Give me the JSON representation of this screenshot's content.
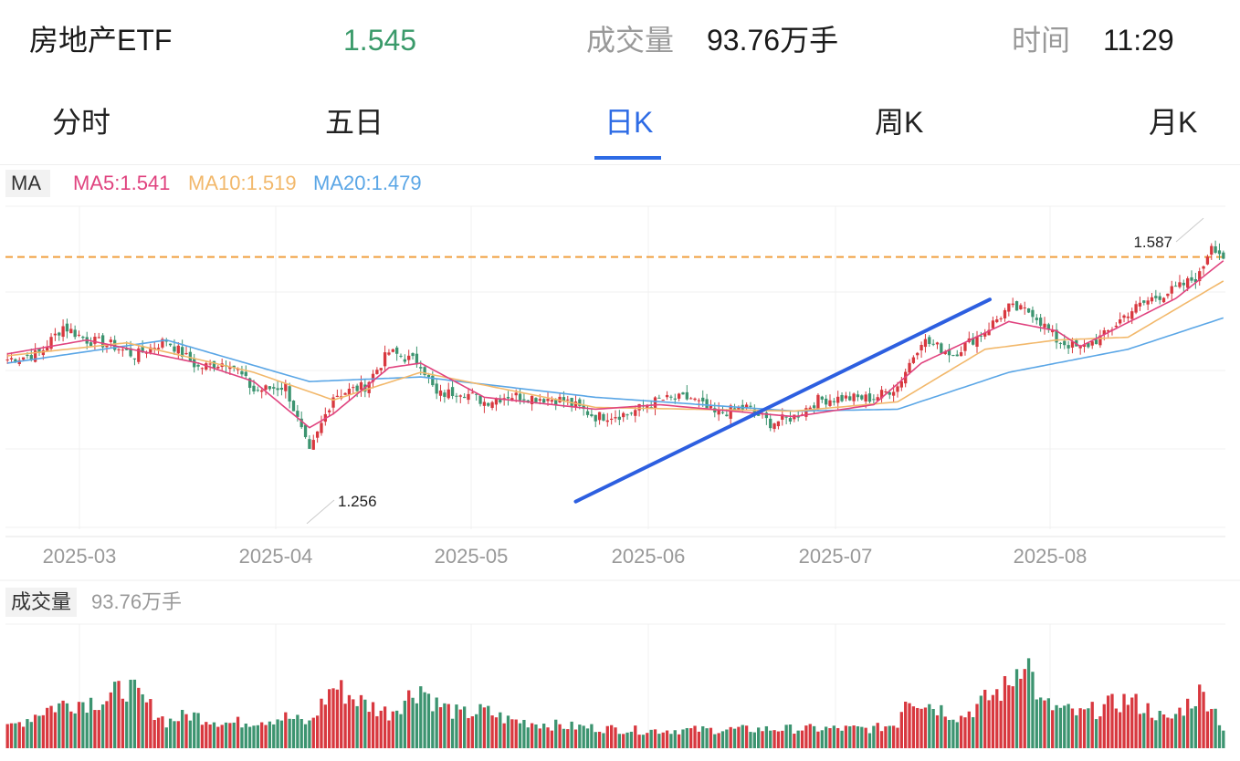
{
  "header": {
    "title": "房地产ETF",
    "price": "1.545",
    "volume_label": "成交量",
    "volume_value": "93.76万手",
    "time_label": "时间",
    "time_value": "11:29"
  },
  "tabs": [
    {
      "label": "分时",
      "active": false
    },
    {
      "label": "五日",
      "active": false
    },
    {
      "label": "日K",
      "active": true
    },
    {
      "label": "周K",
      "active": false
    },
    {
      "label": "月K",
      "active": false
    }
  ],
  "legend": {
    "ma_label": "MA",
    "ma5": "MA5:1.541",
    "ma10": "MA10:1.519",
    "ma20": "MA20:1.479"
  },
  "volume_panel": {
    "label": "成交量",
    "value": "93.76万手"
  },
  "colors": {
    "up": "#d8383f",
    "down": "#3c9470",
    "ma5": "#e0437f",
    "ma10": "#f2b86b",
    "ma20": "#5aa6e6",
    "trendline": "#2d5fe0",
    "reference_line": "#f0a040",
    "active_tab": "#2d6be5"
  },
  "chart_data": {
    "type": "candlestick",
    "x_ticks": [
      "2025-03",
      "2025-04",
      "2025-05",
      "2025-06",
      "2025-07",
      "2025-08"
    ],
    "annotations": [
      {
        "label": "1.587",
        "value": 1.587,
        "kind": "period_high"
      },
      {
        "label": "1.256",
        "value": 1.256,
        "kind": "period_low"
      }
    ],
    "reference_line": {
      "value": 1.545,
      "style": "dashed"
    },
    "trendline": {
      "start": {
        "bar": 143,
        "value": 1.28
      },
      "end": {
        "bar": 244,
        "value": 1.495
      }
    },
    "ylim": [
      1.25,
      1.6
    ],
    "vol_max": 140,
    "grid": true,
    "series_anchors": {
      "close": [
        [
          0,
          1.434
        ],
        [
          8,
          1.44
        ],
        [
          14,
          1.47
        ],
        [
          20,
          1.455
        ],
        [
          26,
          1.45
        ],
        [
          32,
          1.438
        ],
        [
          40,
          1.455
        ],
        [
          48,
          1.425
        ],
        [
          56,
          1.432
        ],
        [
          62,
          1.4
        ],
        [
          70,
          1.405
        ],
        [
          76,
          1.332
        ],
        [
          82,
          1.395
        ],
        [
          90,
          1.405
        ],
        [
          96,
          1.442
        ],
        [
          104,
          1.43
        ],
        [
          108,
          1.395
        ],
        [
          114,
          1.4
        ],
        [
          120,
          1.388
        ],
        [
          126,
          1.395
        ],
        [
          132,
          1.393
        ],
        [
          140,
          1.39
        ],
        [
          148,
          1.372
        ],
        [
          156,
          1.375
        ],
        [
          164,
          1.39
        ],
        [
          172,
          1.392
        ],
        [
          178,
          1.375
        ],
        [
          186,
          1.382
        ],
        [
          192,
          1.365
        ],
        [
          198,
          1.372
        ],
        [
          204,
          1.39
        ],
        [
          210,
          1.392
        ],
        [
          218,
          1.392
        ],
        [
          224,
          1.405
        ],
        [
          230,
          1.455
        ],
        [
          238,
          1.44
        ],
        [
          246,
          1.465
        ],
        [
          252,
          1.49
        ],
        [
          258,
          1.485
        ],
        [
          264,
          1.455
        ],
        [
          270,
          1.445
        ],
        [
          276,
          1.46
        ],
        [
          282,
          1.485
        ],
        [
          288,
          1.5
        ],
        [
          294,
          1.51
        ],
        [
          300,
          1.525
        ],
        [
          303,
          1.56
        ],
        [
          306,
          1.545
        ]
      ],
      "ma5": [
        [
          0,
          1.44
        ],
        [
          20,
          1.455
        ],
        [
          48,
          1.43
        ],
        [
          62,
          1.41
        ],
        [
          76,
          1.36
        ],
        [
          82,
          1.375
        ],
        [
          96,
          1.425
        ],
        [
          104,
          1.43
        ],
        [
          120,
          1.393
        ],
        [
          148,
          1.38
        ],
        [
          164,
          1.385
        ],
        [
          198,
          1.372
        ],
        [
          218,
          1.385
        ],
        [
          230,
          1.43
        ],
        [
          252,
          1.475
        ],
        [
          264,
          1.465
        ],
        [
          270,
          1.448
        ],
        [
          294,
          1.5
        ],
        [
          306,
          1.541
        ]
      ],
      "ma10": [
        [
          0,
          1.438
        ],
        [
          30,
          1.452
        ],
        [
          62,
          1.42
        ],
        [
          82,
          1.39
        ],
        [
          104,
          1.42
        ],
        [
          148,
          1.382
        ],
        [
          198,
          1.378
        ],
        [
          224,
          1.388
        ],
        [
          246,
          1.445
        ],
        [
          264,
          1.455
        ],
        [
          282,
          1.458
        ],
        [
          306,
          1.519
        ]
      ],
      "ma20": [
        [
          0,
          1.43
        ],
        [
          40,
          1.455
        ],
        [
          76,
          1.41
        ],
        [
          104,
          1.415
        ],
        [
          148,
          1.393
        ],
        [
          198,
          1.378
        ],
        [
          224,
          1.38
        ],
        [
          252,
          1.42
        ],
        [
          282,
          1.445
        ],
        [
          306,
          1.479
        ]
      ],
      "volume": [
        [
          0,
          22
        ],
        [
          10,
          45
        ],
        [
          16,
          52
        ],
        [
          25,
          55
        ],
        [
          30,
          70
        ],
        [
          40,
          30
        ],
        [
          46,
          38
        ],
        [
          56,
          28
        ],
        [
          70,
          35
        ],
        [
          76,
          28
        ],
        [
          82,
          70
        ],
        [
          90,
          50
        ],
        [
          96,
          40
        ],
        [
          104,
          70
        ],
        [
          108,
          50
        ],
        [
          114,
          38
        ],
        [
          120,
          42
        ],
        [
          126,
          32
        ],
        [
          140,
          25
        ],
        [
          160,
          20
        ],
        [
          200,
          22
        ],
        [
          218,
          22
        ],
        [
          224,
          28
        ],
        [
          226,
          60
        ],
        [
          232,
          50
        ],
        [
          240,
          35
        ],
        [
          248,
          60
        ],
        [
          252,
          70
        ],
        [
          256,
          110
        ],
        [
          260,
          50
        ],
        [
          264,
          45
        ],
        [
          270,
          38
        ],
        [
          282,
          55
        ],
        [
          288,
          42
        ],
        [
          292,
          30
        ],
        [
          300,
          62
        ],
        [
          303,
          52
        ],
        [
          306,
          22
        ]
      ]
    },
    "bar_count": 307
  }
}
